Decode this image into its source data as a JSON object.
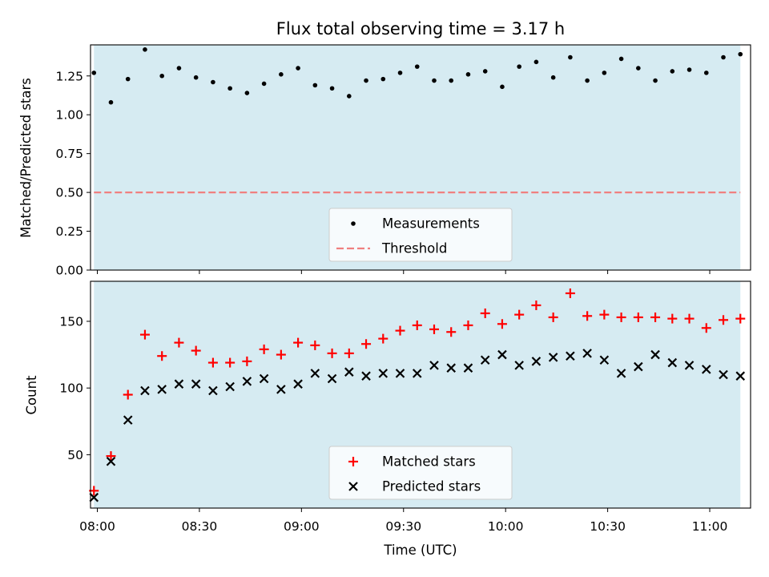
{
  "figure": {
    "title": "Flux total observing time = 3.17 h",
    "xlabel": "Time (UTC)",
    "shade_color": "#add8e6",
    "xlim": [
      "07:58",
      "11:12"
    ],
    "xticks": [
      "08:00",
      "08:30",
      "09:00",
      "09:30",
      "10:00",
      "10:30",
      "11:00"
    ]
  },
  "chart_data": [
    {
      "type": "scatter",
      "ylabel": "Matched/Predicted stars",
      "ylim": [
        0,
        1.45
      ],
      "yticks": [
        "0.00",
        "0.25",
        "0.50",
        "0.75",
        "1.00",
        "1.25"
      ],
      "shaded_span": [
        "07:59",
        "11:09"
      ],
      "threshold": 0.5,
      "threshold_color": "#f08080",
      "legend": {
        "placement": "lower-center",
        "items": [
          "Measurements",
          "Threshold"
        ]
      },
      "x": [
        "07:59",
        "08:04",
        "08:09",
        "08:14",
        "08:19",
        "08:24",
        "08:29",
        "08:34",
        "08:39",
        "08:44",
        "08:49",
        "08:54",
        "08:59",
        "09:04",
        "09:09",
        "09:14",
        "09:19",
        "09:24",
        "09:29",
        "09:34",
        "09:39",
        "09:44",
        "09:49",
        "09:54",
        "09:59",
        "10:04",
        "10:09",
        "10:14",
        "10:19",
        "10:24",
        "10:29",
        "10:34",
        "10:39",
        "10:44",
        "10:49",
        "10:54",
        "10:59",
        "11:04",
        "11:09"
      ],
      "series": [
        {
          "name": "Measurements",
          "color": "#000000",
          "values": [
            1.27,
            1.08,
            1.23,
            1.42,
            1.25,
            1.3,
            1.24,
            1.21,
            1.17,
            1.14,
            1.2,
            1.26,
            1.3,
            1.19,
            1.17,
            1.12,
            1.22,
            1.23,
            1.27,
            1.31,
            1.22,
            1.22,
            1.26,
            1.28,
            1.18,
            1.31,
            1.34,
            1.24,
            1.37,
            1.22,
            1.27,
            1.36,
            1.3,
            1.22,
            1.28,
            1.29,
            1.27,
            1.37,
            1.39
          ]
        }
      ]
    },
    {
      "type": "scatter",
      "ylabel": "Count",
      "ylim": [
        10,
        180
      ],
      "yticks": [
        "50",
        "100",
        "150"
      ],
      "shaded_span": [
        "07:59",
        "11:09"
      ],
      "legend": {
        "placement": "lower-center",
        "items": [
          "Matched stars",
          "Predicted stars"
        ]
      },
      "x": [
        "07:59",
        "08:04",
        "08:09",
        "08:14",
        "08:19",
        "08:24",
        "08:29",
        "08:34",
        "08:39",
        "08:44",
        "08:49",
        "08:54",
        "08:59",
        "09:04",
        "09:09",
        "09:14",
        "09:19",
        "09:24",
        "09:29",
        "09:34",
        "09:39",
        "09:44",
        "09:49",
        "09:54",
        "09:59",
        "10:04",
        "10:09",
        "10:14",
        "10:19",
        "10:24",
        "10:29",
        "10:34",
        "10:39",
        "10:44",
        "10:49",
        "10:54",
        "10:59",
        "11:04",
        "11:09"
      ],
      "series": [
        {
          "name": "Matched stars",
          "marker": "plus",
          "color": "#ff0000",
          "values": [
            23,
            49,
            95,
            140,
            124,
            134,
            128,
            119,
            119,
            120,
            129,
            125,
            134,
            132,
            126,
            126,
            133,
            137,
            143,
            147,
            144,
            142,
            147,
            156,
            148,
            155,
            162,
            153,
            171,
            154,
            155,
            153,
            153,
            153,
            152,
            152,
            145,
            151,
            152
          ]
        },
        {
          "name": "Predicted stars",
          "marker": "x",
          "color": "#000000",
          "values": [
            18,
            45,
            76,
            98,
            99,
            103,
            103,
            98,
            101,
            105,
            107,
            99,
            103,
            111,
            107,
            112,
            109,
            111,
            111,
            111,
            117,
            115,
            115,
            121,
            125,
            117,
            120,
            123,
            124,
            126,
            121,
            111,
            116,
            125,
            119,
            117,
            114,
            110,
            109
          ]
        }
      ]
    }
  ]
}
